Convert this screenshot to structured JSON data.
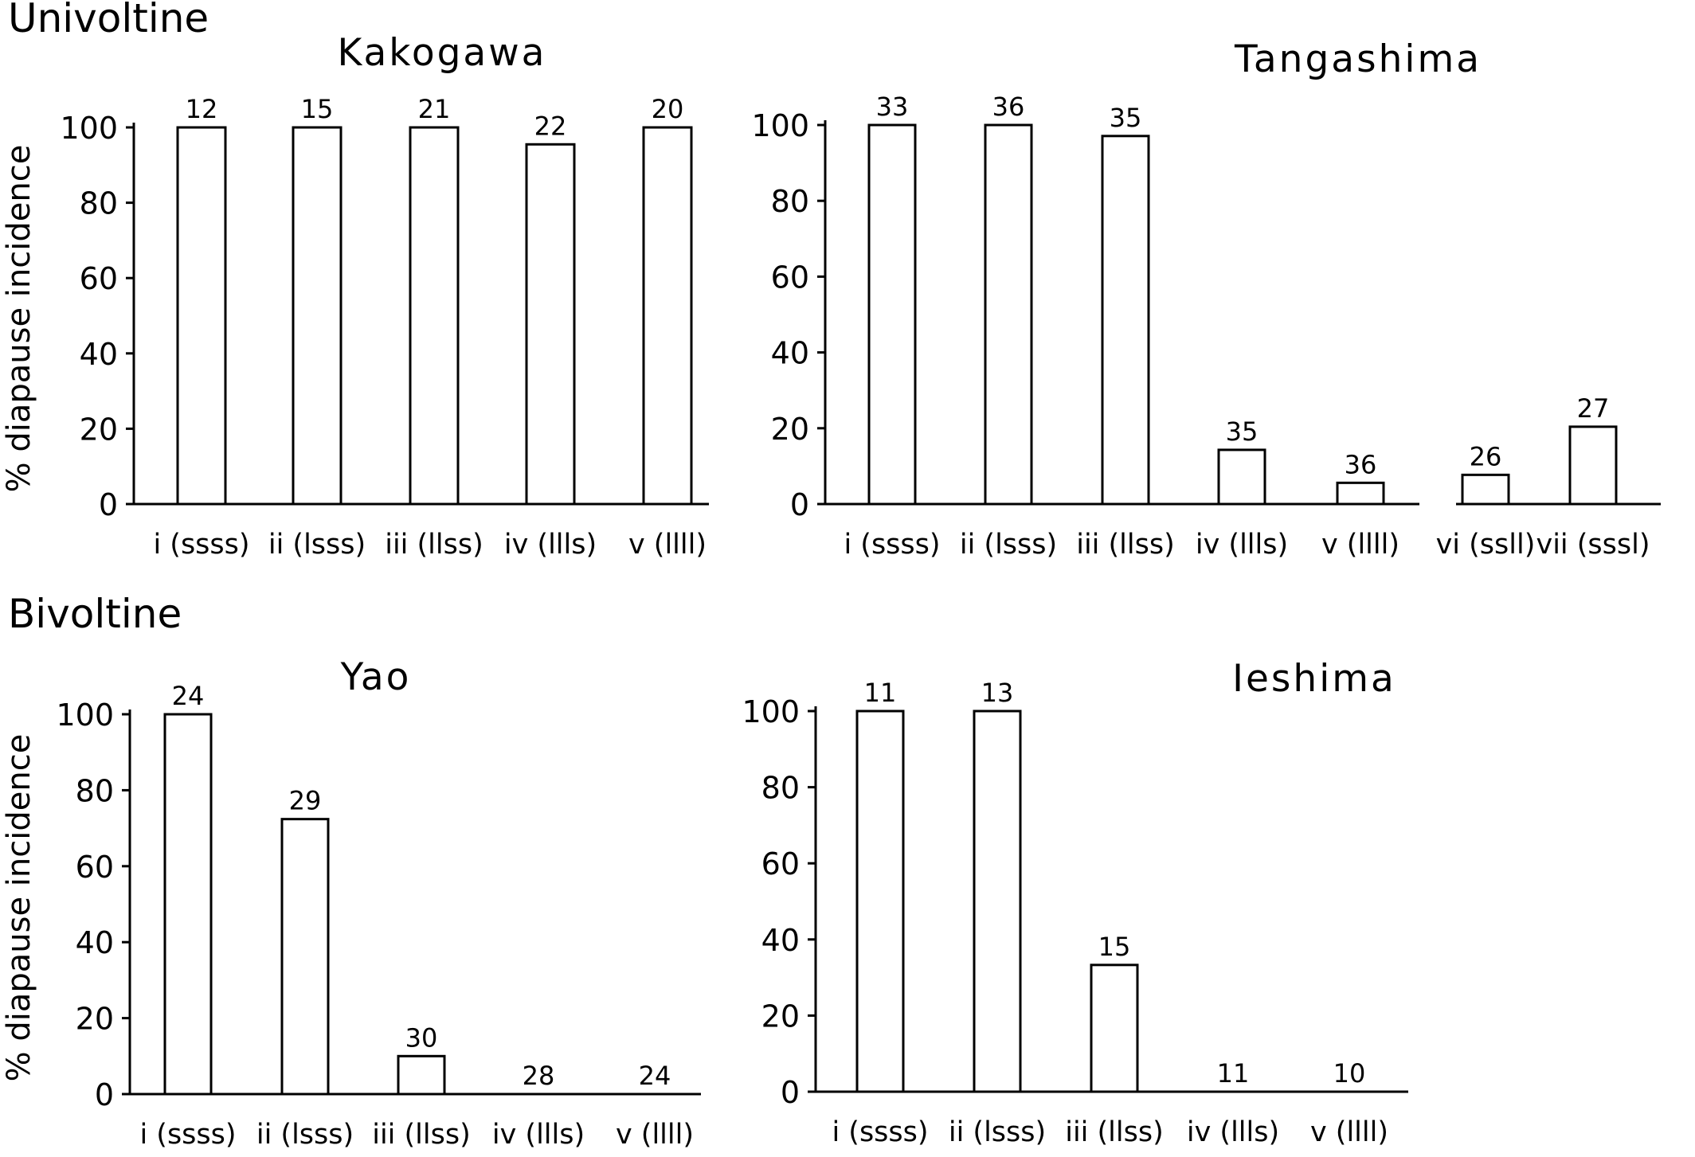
{
  "sections": {
    "univoltine": "Univoltine",
    "bivoltine": "Bivoltine"
  },
  "chart_data": [
    {
      "type": "bar",
      "title": "Kakogawa",
      "xlabel": "",
      "ylabel": "% diapause incidence",
      "ylim": [
        0,
        100
      ],
      "yticks": [
        "0",
        "20",
        "40",
        "60",
        "80",
        "100"
      ],
      "categories": [
        "i (ssss)",
        "ii (lsss)",
        "iii (llss)",
        "iv (llls)",
        "v (llll)"
      ],
      "values": [
        100,
        100,
        100,
        95.5,
        100
      ],
      "n_labels": [
        "12",
        "15",
        "21",
        "22",
        "20"
      ],
      "grid": false
    },
    {
      "type": "bar",
      "title": "Tangashima",
      "xlabel": "",
      "ylabel": "",
      "ylim": [
        0,
        100
      ],
      "yticks": [
        "0",
        "20",
        "40",
        "60",
        "80",
        "100"
      ],
      "categories": [
        "i (ssss)",
        "ii (lsss)",
        "iii (llss)",
        "iv (llls)",
        "v (llll)",
        "vi (ssll)",
        "vii (sssl)"
      ],
      "values": [
        100,
        100,
        97.1,
        14.3,
        5.6,
        7.7,
        20.4
      ],
      "n_labels": [
        "33",
        "36",
        "35",
        "35",
        "36",
        "26",
        "27"
      ],
      "grid": false
    },
    {
      "type": "bar",
      "title": "Yao",
      "xlabel": "",
      "ylabel": "% diapause incidence",
      "ylim": [
        0,
        100
      ],
      "yticks": [
        "0",
        "20",
        "40",
        "60",
        "80",
        "100"
      ],
      "categories": [
        "i (ssss)",
        "ii (lsss)",
        "iii (llss)",
        "iv (llls)",
        "v (llll)"
      ],
      "values": [
        100,
        72.4,
        10,
        0,
        0
      ],
      "n_labels": [
        "24",
        "29",
        "30",
        "28",
        "24"
      ],
      "grid": false
    },
    {
      "type": "bar",
      "title": "Ieshima",
      "xlabel": "",
      "ylabel": "",
      "ylim": [
        0,
        100
      ],
      "yticks": [
        "0",
        "20",
        "40",
        "60",
        "80",
        "100"
      ],
      "categories": [
        "i (ssss)",
        "ii (lsss)",
        "iii (llss)",
        "iv (llls)",
        "v (llll)"
      ],
      "values": [
        100,
        100,
        33.3,
        0,
        0
      ],
      "n_labels": [
        "11",
        "13",
        "15",
        "11",
        "10"
      ],
      "grid": false
    }
  ]
}
